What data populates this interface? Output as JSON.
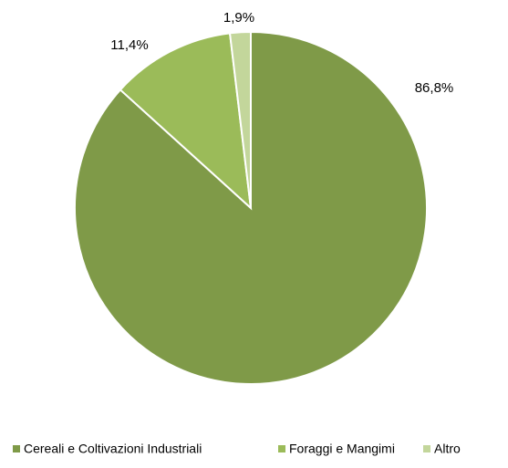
{
  "chart_data": {
    "type": "pie",
    "categories": [
      "Cereali e Coltivazioni Industriali",
      "Foraggi e Mangimi",
      "Altro"
    ],
    "values": [
      86.8,
      11.4,
      1.9
    ],
    "value_labels": [
      "86,8%",
      "11,4%",
      "1,9%"
    ],
    "colors": [
      "#7f9a48",
      "#9bbb59",
      "#c3d69b"
    ],
    "legend": "bottom"
  }
}
